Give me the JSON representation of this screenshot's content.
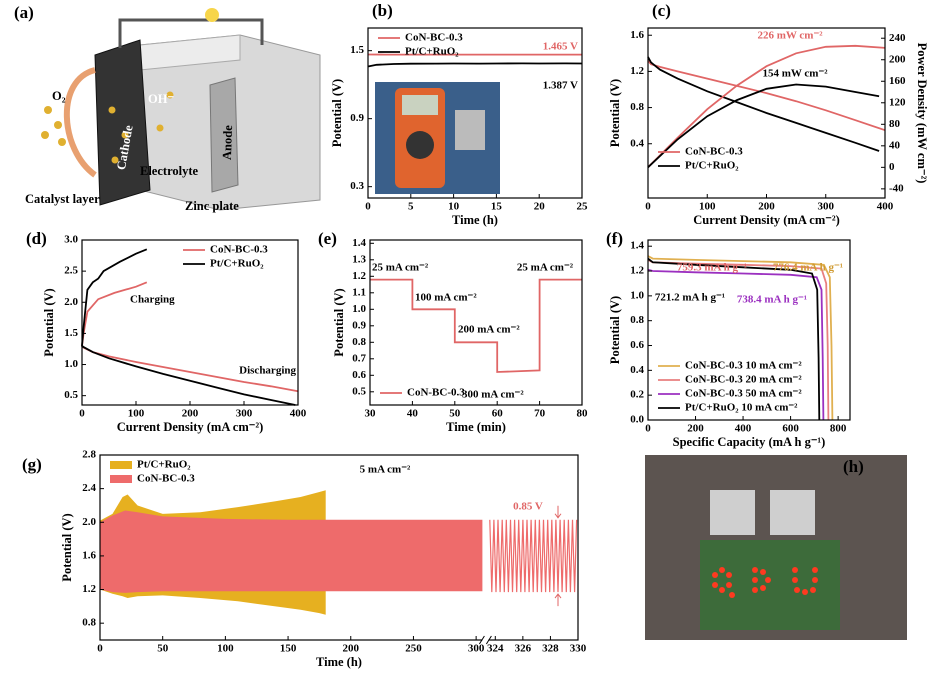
{
  "diagram_a": {
    "panel_label": "(a)",
    "o2": "O₂",
    "oh": "OH⁻",
    "cathode": "Cathode",
    "anode": "Anode",
    "electrolyte": "Electrolyte",
    "catalyst": "Catalyst layer",
    "zinc": "Zinc plate"
  },
  "photo_h": {
    "panel_label": "(h)"
  },
  "chart_data": [
    {
      "panel_label": "(b)",
      "type": "line",
      "xlabel": "Time (h)",
      "ylabel": "Potential (V)",
      "xlim": [
        0,
        25
      ],
      "xticks": [
        0,
        5,
        10,
        15,
        20,
        25
      ],
      "ylim": [
        0.2,
        1.7
      ],
      "yticks": [
        0.3,
        0.9,
        1.5
      ],
      "legend": "upper left",
      "series": [
        {
          "name": "CoN-BC-0.3",
          "color": "#e06666",
          "x": [
            0,
            2,
            5,
            10,
            15,
            20,
            25
          ],
          "values": [
            1.466,
            1.465,
            1.465,
            1.465,
            1.465,
            1.465,
            1.465
          ]
        },
        {
          "name": "Pt/C+RuO₂",
          "color": "#000000",
          "x": [
            0,
            1,
            3,
            5,
            8,
            10,
            13,
            15,
            18,
            20,
            23,
            25
          ],
          "values": [
            1.36,
            1.375,
            1.382,
            1.385,
            1.386,
            1.387,
            1.386,
            1.387,
            1.388,
            1.387,
            1.388,
            1.387
          ]
        }
      ],
      "annotations": [
        {
          "text": "1.465 V",
          "color": "#e06666"
        },
        {
          "text": "1.387 V",
          "color": "#000000"
        }
      ]
    },
    {
      "panel_label": "(c)",
      "type": "line",
      "xlabel": "Current Density (mA cm⁻²)",
      "ylabel": "Potential (V)",
      "y2label": "Power Density (mW cm⁻²)",
      "xlim": [
        0,
        400
      ],
      "xticks": [
        0,
        100,
        200,
        300,
        400
      ],
      "ylim": [
        -0.2,
        1.68
      ],
      "yticks": [
        0.4,
        0.8,
        1.2,
        1.6
      ],
      "y2lim": [
        -57,
        259
      ],
      "y2ticks": [
        -40,
        0,
        40,
        80,
        120,
        160,
        200,
        240
      ],
      "legend": "lower left",
      "series": [
        {
          "name": "CoN-BC-0.3",
          "color": "#e06666",
          "x": [
            0,
            5,
            20,
            50,
            100,
            150,
            200,
            250,
            300,
            350,
            400
          ],
          "values": [
            1.32,
            1.28,
            1.25,
            1.2,
            1.12,
            1.04,
            0.96,
            0.87,
            0.77,
            0.66,
            0.55
          ]
        },
        {
          "name": "Pt/C+RuO₂",
          "color": "#000000",
          "x": [
            0,
            5,
            20,
            50,
            100,
            150,
            200,
            250,
            300,
            350,
            390
          ],
          "values": [
            1.36,
            1.3,
            1.22,
            1.12,
            0.98,
            0.86,
            0.74,
            0.63,
            0.52,
            0.41,
            0.32
          ]
        },
        {
          "name": "CoN-BC-0.3",
          "color": "#e06666",
          "axis": "y2",
          "x": [
            0,
            50,
            100,
            150,
            200,
            250,
            300,
            350,
            400
          ],
          "values": [
            0,
            55,
            108,
            152,
            188,
            212,
            224,
            226,
            222
          ]
        },
        {
          "name": "Pt/C+RuO₂",
          "color": "#000000",
          "axis": "y2",
          "x": [
            0,
            50,
            100,
            150,
            200,
            250,
            300,
            350,
            390
          ],
          "values": [
            0,
            52,
            95,
            125,
            146,
            154,
            150,
            140,
            132
          ]
        }
      ],
      "annotations": [
        {
          "text": "226 mW cm⁻²",
          "color": "#e06666"
        },
        {
          "text": "154 mW cm⁻²",
          "color": "#000000"
        }
      ]
    },
    {
      "panel_label": "(d)",
      "type": "line",
      "xlabel": "Current Density (mA cm⁻²)",
      "ylabel": "Potential (V)",
      "xlim": [
        0,
        400
      ],
      "xticks": [
        0,
        100,
        200,
        300,
        400
      ],
      "ylim": [
        0.35,
        3.0
      ],
      "yticks": [
        0.5,
        {
          "value": 1,
          "label": "1.0"
        },
        1.5,
        {
          "value": 2,
          "label": "2.0"
        },
        2.5,
        {
          "value": 3,
          "label": "3.0"
        }
      ],
      "legend": "upper right",
      "series": [
        {
          "name": "CoN-BC-0.3",
          "color": "#e06666",
          "x": [
            120,
            100,
            60,
            30,
            10,
            3,
            0,
            3,
            20,
            50,
            100,
            150,
            200,
            250,
            300,
            350,
            400
          ],
          "values": [
            2.32,
            2.25,
            2.15,
            2.05,
            1.85,
            1.5,
            1.3,
            1.27,
            1.2,
            1.13,
            1.04,
            0.96,
            0.88,
            0.8,
            0.72,
            0.65,
            0.57
          ]
        },
        {
          "name": "Pt/C+RuO₂",
          "color": "#000000",
          "x": [
            120,
            100,
            70,
            40,
            30,
            20,
            10,
            3,
            0,
            3,
            20,
            50,
            100,
            150,
            200,
            250,
            300,
            350,
            395
          ],
          "values": [
            2.85,
            2.78,
            2.65,
            2.5,
            2.38,
            2.32,
            2.2,
            1.6,
            1.3,
            1.28,
            1.2,
            1.1,
            0.97,
            0.85,
            0.74,
            0.63,
            0.52,
            0.43,
            0.35
          ]
        }
      ],
      "annotations": [
        {
          "text": "Charging",
          "color": "#000000"
        },
        {
          "text": "Discharging",
          "color": "#000000"
        }
      ]
    },
    {
      "panel_label": "(e)",
      "type": "line",
      "xlabel": "Time (min)",
      "ylabel": "Potential (V)",
      "xlim": [
        30,
        80
      ],
      "xticks": [
        30,
        40,
        50,
        60,
        70,
        80
      ],
      "ylim": [
        0.42,
        1.42
      ],
      "yticks": [
        0.5,
        0.6,
        0.7,
        0.8,
        0.9,
        {
          "value": 1,
          "label": "1.0"
        },
        1.1,
        1.2,
        1.3,
        1.4
      ],
      "legend": "lower left",
      "series": [
        {
          "name": "CoN-BC-0.3",
          "color": "#e06666",
          "x": [
            30,
            40,
            40,
            50,
            50,
            60,
            60,
            70,
            70,
            80
          ],
          "values": [
            1.18,
            1.18,
            1.0,
            1.0,
            0.8,
            0.8,
            0.62,
            0.63,
            1.18,
            1.18
          ]
        }
      ],
      "annotations": [
        {
          "text": "25 mA cm⁻²",
          "color": "#000000"
        },
        {
          "text": "100 mA cm⁻²",
          "color": "#000000"
        },
        {
          "text": "200 mA cm⁻²",
          "color": "#000000"
        },
        {
          "text": "300 mA cm⁻²",
          "color": "#000000"
        },
        {
          "text": "25 mA cm⁻²",
          "color": "#000000"
        }
      ]
    },
    {
      "panel_label": "(f)",
      "type": "line",
      "xlabel": "Specific Capacity (mA h g⁻¹)",
      "ylabel": "Potential (V)",
      "xlim": [
        0,
        850
      ],
      "xticks": [
        0,
        200,
        400,
        600,
        800
      ],
      "ylim": [
        0,
        1.45
      ],
      "yticks": [
        {
          "value": 0,
          "label": "0.0"
        },
        0.2,
        0.4,
        0.6,
        0.8,
        {
          "value": 1,
          "label": "1.0"
        },
        1.2,
        1.4
      ],
      "legend": "lower left",
      "series": [
        {
          "name": "CoN-BC-0.3 10 mA cm⁻²",
          "color": "#e0b050",
          "x": [
            0,
            20,
            200,
            400,
            600,
            740,
            765,
            772,
            776
          ],
          "values": [
            1.32,
            1.3,
            1.29,
            1.28,
            1.27,
            1.25,
            1.15,
            0.6,
            0
          ]
        },
        {
          "name": "CoN-BC-0.3 20 mA cm⁻²",
          "color": "#e87f7f",
          "x": [
            0,
            20,
            200,
            400,
            600,
            730,
            750,
            756,
            759
          ],
          "values": [
            1.29,
            1.27,
            1.26,
            1.25,
            1.24,
            1.22,
            1.1,
            0.6,
            0
          ]
        },
        {
          "name": "CoN-BC-0.3 50 mA cm⁻²",
          "color": "#9b30c0",
          "x": [
            0,
            20,
            200,
            400,
            600,
            710,
            730,
            735,
            738
          ],
          "values": [
            1.21,
            1.2,
            1.19,
            1.18,
            1.17,
            1.15,
            1.05,
            0.5,
            0
          ]
        },
        {
          "name": "Pt/C+RuO₂ 10 mA cm⁻²",
          "color": "#000000",
          "x": [
            0,
            20,
            200,
            400,
            600,
            690,
            712,
            718,
            721
          ],
          "values": [
            1.3,
            1.27,
            1.25,
            1.23,
            1.21,
            1.18,
            1.05,
            0.5,
            0
          ]
        }
      ],
      "annotations": [
        {
          "text": "759.3 mA h g⁻¹",
          "color": "#e06666"
        },
        {
          "text": "776.4 mA h g⁻¹",
          "color": "#d09a30"
        },
        {
          "text": "721.2 mA h g⁻¹",
          "color": "#000000"
        },
        {
          "text": "738.4 mA h g⁻¹",
          "color": "#9b30c0"
        }
      ]
    },
    {
      "panel_label": "(g)",
      "type": "band",
      "xlabel": "Time (h)",
      "ylabel": "Potential (V)",
      "xlim": [
        0,
        330
      ],
      "xbreak": [
        305,
        323.5
      ],
      "xticks": [
        0,
        50,
        100,
        150,
        200,
        250,
        300,
        324,
        326,
        328,
        330
      ],
      "ylim": [
        0.6,
        2.8
      ],
      "yticks": [
        0.8,
        1.2,
        1.6,
        {
          "value": 2,
          "label": "2.0"
        },
        2.4,
        2.8
      ],
      "legend": "upper left",
      "series": [
        {
          "name": "Pt/C+RuO₂",
          "color": "#e6b020",
          "x": [
            0,
            10,
            18,
            22,
            30,
            50,
            80,
            110,
            140,
            160,
            175,
            180
          ],
          "upper": [
            2.02,
            2.1,
            2.3,
            2.33,
            2.2,
            2.1,
            2.12,
            2.18,
            2.25,
            2.3,
            2.36,
            2.38
          ],
          "lower": [
            1.2,
            1.15,
            1.12,
            1.1,
            1.12,
            1.13,
            1.1,
            1.06,
            1.0,
            0.96,
            0.92,
            0.9
          ]
        },
        {
          "name": "CoN-BC-0.3",
          "color": "#ee6b6b",
          "x": [
            0,
            10,
            20,
            30,
            50,
            100,
            150,
            200,
            250,
            305
          ],
          "upper": [
            2.0,
            2.08,
            2.14,
            2.12,
            2.07,
            2.04,
            2.03,
            2.03,
            2.03,
            2.03
          ],
          "lower": [
            1.2,
            1.17,
            1.16,
            1.17,
            1.18,
            1.18,
            1.18,
            1.18,
            1.18,
            1.18
          ]
        }
      ],
      "detail": {
        "color": "#ee6b6b",
        "x": [
          323.6,
          323.75,
          323.9,
          324.05,
          324.2,
          324.35,
          324.5,
          324.65,
          324.8,
          324.95,
          325.1,
          325.25,
          325.4,
          325.55,
          325.7,
          325.85,
          326,
          326.15,
          326.3,
          326.45,
          326.6,
          326.75,
          326.9,
          327.05,
          327.2,
          327.35,
          327.5,
          327.65,
          327.8,
          327.95,
          328.1,
          328.25,
          328.4,
          328.55,
          328.7,
          328.85,
          329,
          329.15,
          329.3,
          329.45,
          329.6,
          329.75,
          329.9
        ],
        "values": [
          2.03,
          1.17,
          2.03,
          1.17,
          2.03,
          1.17,
          2.03,
          1.17,
          2.03,
          1.17,
          2.03,
          1.17,
          2.03,
          1.17,
          2.03,
          1.17,
          2.03,
          1.17,
          2.03,
          1.17,
          2.03,
          1.17,
          2.03,
          1.17,
          2.03,
          1.17,
          2.03,
          1.17,
          2.03,
          1.17,
          2.03,
          1.17,
          2.03,
          1.17,
          2.03,
          1.17,
          2.03,
          1.17,
          2.03,
          1.17,
          2.03,
          1.17,
          2.03
        ]
      },
      "annotations": [
        {
          "text": "5 mA cm⁻²",
          "color": "#000000"
        },
        {
          "text": "0.85 V",
          "color": "#e06666"
        }
      ]
    }
  ]
}
